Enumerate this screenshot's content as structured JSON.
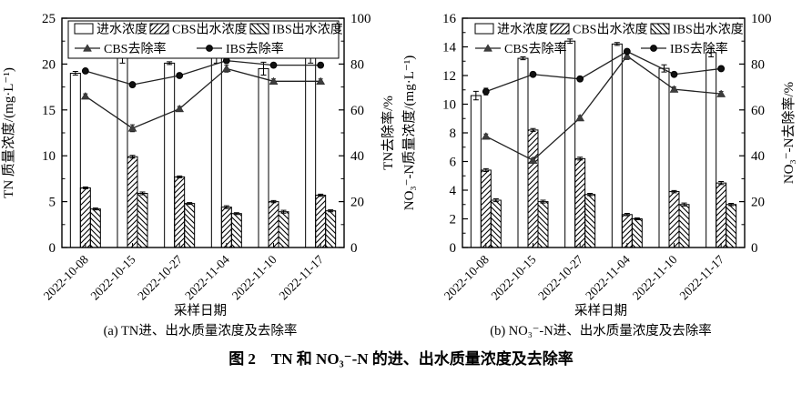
{
  "figure": {
    "title": "图 2　TN 和 NO₃⁻-N 的进、出水质量浓度及去除率"
  },
  "colors": {
    "foreground": "#000000",
    "background": "#ffffff",
    "line": "#222222",
    "triangle_marker": "#3d3d3d",
    "circle_marker": "#111111"
  },
  "chart_data": [
    {
      "type": "bar",
      "caption": "(a) TN进、出水质量浓度及去除率",
      "xlabel": "采样日期",
      "ylabel_left": "TN 质量浓度/(mg·L⁻¹)",
      "ylabel_right": "TN去除率/%",
      "ylim_left": [
        0,
        25
      ],
      "ytick_step_left": 5,
      "ylim_right": [
        0,
        100
      ],
      "ytick_step_right": 20,
      "legend_boxed": true,
      "categories": [
        "2022-10-08",
        "2022-10-15",
        "2022-10-27",
        "2022-11-04",
        "2022-11-10",
        "2022-11-17"
      ],
      "bar_series": [
        {
          "name": "进水浓度",
          "hatch": "none",
          "values": [
            19.0,
            20.7,
            20.1,
            20.7,
            19.5,
            20.8
          ],
          "errors": [
            0.2,
            0.6,
            0.15,
            0.6,
            0.7,
            0.7
          ]
        },
        {
          "name": "CBS出水浓度",
          "hatch": "fwd",
          "values": [
            6.5,
            9.9,
            7.7,
            4.4,
            5.0,
            5.7
          ],
          "errors": [
            0.1,
            0.15,
            0.1,
            0.15,
            0.12,
            0.12
          ]
        },
        {
          "name": "IBS出水浓度",
          "hatch": "back",
          "values": [
            4.2,
            5.9,
            4.8,
            3.7,
            3.9,
            4.0
          ],
          "errors": [
            0.1,
            0.15,
            0.1,
            0.1,
            0.15,
            0.1
          ]
        }
      ],
      "line_series": [
        {
          "name": "CBS去除率",
          "marker": "triangle",
          "values": [
            66,
            52,
            60.5,
            78,
            72.5,
            72.5
          ],
          "errors": [
            1,
            1.5,
            1,
            1.5,
            1,
            1
          ]
        },
        {
          "name": "IBS去除率",
          "marker": "circle",
          "values": [
            77,
            71,
            75,
            81.5,
            79.5,
            79.5
          ],
          "errors": [
            1,
            1,
            1,
            1,
            1,
            1
          ]
        }
      ]
    },
    {
      "type": "bar",
      "caption": "(b) NO₃⁻-N进、出水质量浓度及去除率",
      "xlabel": "采样日期",
      "ylabel_left": "NO₃⁻-N质量浓度/(mg·L⁻¹)",
      "ylabel_right": "NO₃⁻-N去除率/%",
      "ylim_left": [
        0,
        16
      ],
      "ytick_step_left": 2,
      "ylim_right": [
        0,
        100
      ],
      "ytick_step_right": 20,
      "legend_boxed": false,
      "categories": [
        "2022-10-08",
        "2022-10-15",
        "2022-10-27",
        "2022-11-04",
        "2022-11-10",
        "2022-11-17"
      ],
      "bar_series": [
        {
          "name": "进水浓度",
          "hatch": "none",
          "values": [
            10.6,
            13.2,
            14.4,
            14.2,
            12.5,
            13.6
          ],
          "errors": [
            0.3,
            0.1,
            0.15,
            0.1,
            0.25,
            0.3
          ]
        },
        {
          "name": "CBS出水浓度",
          "hatch": "fwd",
          "values": [
            5.4,
            8.2,
            6.2,
            2.3,
            3.9,
            4.5
          ],
          "errors": [
            0.1,
            0.1,
            0.1,
            0.08,
            0.08,
            0.1
          ]
        },
        {
          "name": "IBS出水浓度",
          "hatch": "back",
          "values": [
            3.3,
            3.2,
            3.7,
            2.0,
            3.0,
            3.0
          ],
          "errors": [
            0.1,
            0.1,
            0.08,
            0.06,
            0.1,
            0.08
          ]
        }
      ],
      "line_series": [
        {
          "name": "CBS去除率",
          "marker": "triangle",
          "values": [
            48.5,
            38,
            56.5,
            83.5,
            69,
            67
          ],
          "errors": [
            1,
            1,
            1,
            1.5,
            1,
            1
          ]
        },
        {
          "name": "IBS去除率",
          "marker": "circle",
          "values": [
            68,
            75.5,
            73.5,
            85.5,
            75.5,
            78
          ],
          "errors": [
            1.5,
            1,
            1,
            1,
            1,
            1
          ]
        }
      ]
    }
  ]
}
